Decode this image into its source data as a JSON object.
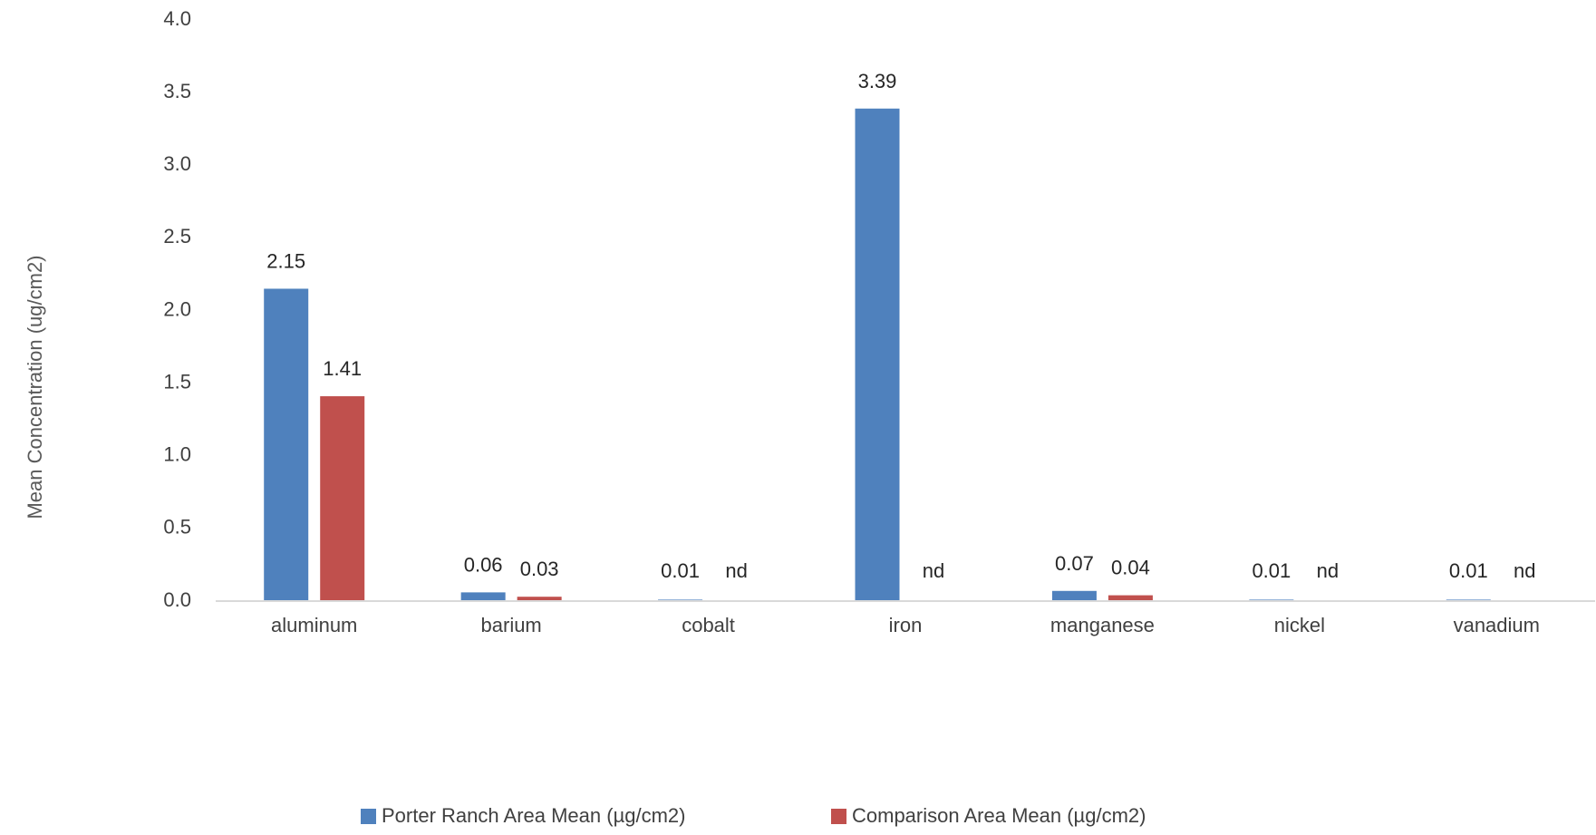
{
  "chart_data": {
    "type": "bar",
    "title": "",
    "xlabel": "",
    "ylabel": "Mean Concentration (ug/cm2)",
    "ylim": [
      0,
      4.0
    ],
    "yticks": [
      "0.0",
      "0.5",
      "1.0",
      "1.5",
      "2.0",
      "2.5",
      "3.0",
      "3.5",
      "4.0"
    ],
    "grid": false,
    "legend_position": "bottom",
    "categories": [
      "aluminum",
      "barium",
      "cobalt",
      "iron",
      "manganese",
      "nickel",
      "vanadium"
    ],
    "series": [
      {
        "name": "Porter Ranch Area Mean (µg/cm2)",
        "color": "#4F81BD",
        "values": [
          2.15,
          0.06,
          0.01,
          3.39,
          0.07,
          0.01,
          0.01
        ],
        "labels": [
          "2.15",
          "0.06",
          "0.01",
          "3.39",
          "0.07",
          "0.01",
          "0.01"
        ]
      },
      {
        "name": "Comparison Area Mean (µg/cm2)",
        "color": "#C0504D",
        "values": [
          1.41,
          0.03,
          0,
          0,
          0.04,
          0,
          0
        ],
        "labels": [
          "1.41",
          "0.03",
          "nd",
          "nd",
          "0.04",
          "nd",
          "nd"
        ]
      }
    ]
  }
}
